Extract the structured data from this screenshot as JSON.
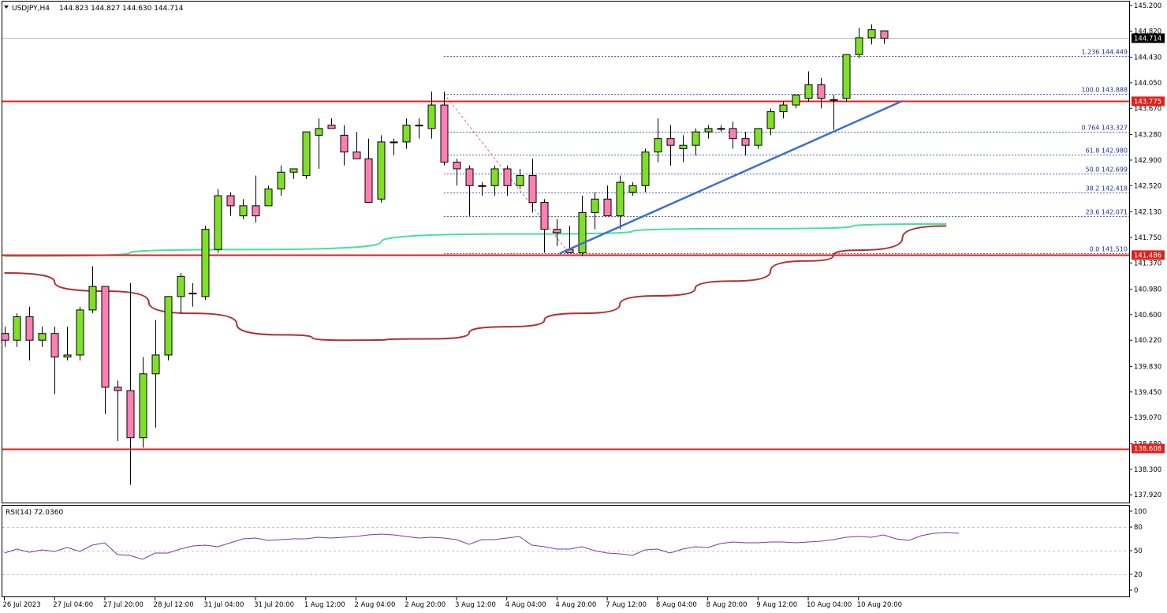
{
  "chart_data": {
    "type": "candlestick",
    "symbol_label": "USDJPY,H4",
    "ohlc_label": "144.823 144.827 144.630 144.714",
    "price_axis_ticks": [
      "145.200",
      "144.820",
      "144.430",
      "144.050",
      "143.670",
      "143.280",
      "142.900",
      "142.520",
      "142.130",
      "141.750",
      "141.370",
      "140.980",
      "140.600",
      "140.220",
      "139.830",
      "139.450",
      "139.070",
      "138.680",
      "138.300",
      "137.920"
    ],
    "price_axis_tick_values": [
      145.2,
      144.82,
      144.43,
      144.05,
      143.67,
      143.28,
      142.9,
      142.52,
      142.13,
      141.75,
      141.37,
      140.98,
      140.6,
      140.22,
      139.83,
      139.45,
      139.07,
      138.68,
      138.3,
      137.92
    ],
    "time_axis_labels": [
      "26 Jul 2023",
      "27 Jul 04:00",
      "27 Jul 20:00",
      "28 Jul 12:00",
      "31 Jul 04:00",
      "31 Jul 20:00",
      "1 Aug 12:00",
      "2 Aug 04:00",
      "2 Aug 20:00",
      "3 Aug 12:00",
      "4 Aug 04:00",
      "4 Aug 20:00",
      "7 Aug 12:00",
      "8 Aug 04:00",
      "8 Aug 20:00",
      "9 Aug 12:00",
      "10 Aug 04:00",
      "10 Aug 20:00"
    ],
    "time_axis_label_bars": [
      0,
      4,
      8,
      12,
      16,
      20,
      24,
      28,
      32,
      36,
      40,
      44,
      48,
      52,
      56,
      60,
      64,
      68
    ],
    "bull_color": "#7fe02a",
    "bear_color": "#ff7fb2",
    "candles": [
      [
        140.32,
        140.42,
        140.12,
        140.22
      ],
      [
        140.22,
        140.62,
        140.12,
        140.57
      ],
      [
        140.57,
        140.72,
        139.92,
        140.22
      ],
      [
        140.22,
        140.42,
        140.12,
        140.32
      ],
      [
        140.32,
        140.42,
        139.42,
        139.97
      ],
      [
        139.97,
        140.42,
        139.92,
        140.0
      ],
      [
        140.0,
        140.72,
        139.92,
        140.67
      ],
      [
        140.67,
        141.32,
        140.62,
        141.02
      ],
      [
        141.02,
        141.02,
        139.12,
        139.52
      ],
      [
        139.52,
        139.62,
        138.72,
        139.47
      ],
      [
        139.47,
        141.07,
        138.07,
        138.77
      ],
      [
        138.77,
        139.97,
        138.62,
        139.72
      ],
      [
        139.72,
        140.52,
        138.92,
        140.0
      ],
      [
        140.0,
        140.87,
        139.92,
        140.87
      ],
      [
        140.87,
        141.22,
        140.62,
        141.17
      ],
      [
        140.92,
        141.07,
        140.72,
        140.92
      ],
      [
        140.87,
        141.92,
        140.82,
        141.87
      ],
      [
        141.57,
        142.47,
        141.52,
        142.37
      ],
      [
        142.37,
        142.42,
        142.07,
        142.22
      ],
      [
        142.07,
        142.32,
        142.02,
        142.22
      ],
      [
        142.22,
        142.67,
        141.97,
        142.07
      ],
      [
        142.22,
        142.52,
        142.22,
        142.47
      ],
      [
        142.47,
        142.82,
        142.37,
        142.72
      ],
      [
        142.72,
        142.77,
        142.62,
        142.77
      ],
      [
        142.67,
        143.32,
        142.62,
        143.32
      ],
      [
        143.27,
        143.52,
        142.77,
        143.37
      ],
      [
        143.42,
        143.52,
        143.37,
        143.37
      ],
      [
        143.27,
        143.42,
        142.82,
        143.02
      ],
      [
        143.02,
        143.32,
        142.92,
        142.92
      ],
      [
        142.92,
        143.22,
        142.27,
        142.27
      ],
      [
        142.32,
        143.27,
        142.27,
        143.17
      ],
      [
        143.17,
        143.22,
        142.97,
        143.17
      ],
      [
        143.17,
        143.52,
        143.07,
        143.42
      ],
      [
        143.42,
        143.52,
        143.22,
        143.42
      ],
      [
        143.37,
        143.92,
        143.22,
        143.72
      ],
      [
        143.72,
        143.92,
        142.82,
        142.87
      ],
      [
        142.87,
        142.92,
        142.52,
        142.77
      ],
      [
        142.77,
        142.82,
        142.07,
        142.52
      ],
      [
        142.52,
        142.57,
        142.37,
        142.52
      ],
      [
        142.52,
        142.82,
        142.37,
        142.77
      ],
      [
        142.77,
        142.82,
        142.37,
        142.52
      ],
      [
        142.52,
        142.77,
        142.47,
        142.67
      ],
      [
        142.67,
        142.92,
        142.12,
        142.27
      ],
      [
        142.27,
        142.32,
        141.52,
        141.87
      ],
      [
        141.87,
        142.02,
        141.62,
        141.82
      ],
      [
        141.57,
        141.92,
        141.52,
        141.52
      ],
      [
        141.52,
        142.37,
        141.47,
        142.12
      ],
      [
        142.12,
        142.42,
        141.87,
        142.32
      ],
      [
        142.32,
        142.52,
        142.07,
        142.07
      ],
      [
        142.07,
        142.67,
        141.87,
        142.57
      ],
      [
        142.42,
        142.57,
        142.37,
        142.52
      ],
      [
        142.52,
        143.07,
        142.42,
        143.02
      ],
      [
        143.02,
        143.52,
        142.87,
        143.22
      ],
      [
        143.22,
        143.42,
        142.82,
        143.12
      ],
      [
        143.07,
        143.27,
        142.87,
        143.12
      ],
      [
        143.12,
        143.37,
        142.97,
        143.32
      ],
      [
        143.32,
        143.42,
        143.22,
        143.37
      ],
      [
        143.37,
        143.42,
        143.32,
        143.37
      ],
      [
        143.37,
        143.47,
        143.07,
        143.22
      ],
      [
        143.22,
        143.32,
        142.97,
        143.12
      ],
      [
        143.12,
        143.37,
        143.07,
        143.37
      ],
      [
        143.37,
        143.67,
        143.27,
        143.62
      ],
      [
        143.62,
        143.77,
        143.52,
        143.72
      ],
      [
        143.72,
        143.82,
        143.67,
        143.87
      ],
      [
        143.82,
        144.22,
        143.77,
        144.02
      ],
      [
        144.02,
        144.12,
        143.67,
        143.82
      ],
      [
        143.8,
        143.87,
        143.35,
        143.8
      ],
      [
        143.82,
        144.42,
        143.77,
        144.47
      ],
      [
        144.47,
        144.87,
        144.42,
        144.72
      ],
      [
        144.72,
        144.92,
        144.62,
        144.84
      ],
      [
        144.823,
        144.827,
        144.63,
        144.714
      ]
    ],
    "horizontal_levels": [
      {
        "price": 143.775,
        "label": "143.775",
        "color": "#e0201c"
      },
      {
        "price": 141.486,
        "label": "141.486",
        "color": "#e0201c"
      },
      {
        "price": 138.608,
        "label": "138.608",
        "color": "#e0201c"
      }
    ],
    "current_price": {
      "price": 144.714,
      "label": "144.714"
    },
    "fibonacci": {
      "color": "#1f2f9e",
      "levels": [
        {
          "label": "1.236 144.449",
          "price": 144.449
        },
        {
          "label": "100.0 143.888",
          "price": 143.888
        },
        {
          "label": "0.764 143.327",
          "price": 143.327
        },
        {
          "label": "61.8 142.980",
          "price": 142.98
        },
        {
          "label": "50.0 142.699",
          "price": 142.699
        },
        {
          "label": "38.2 142.418",
          "price": 142.418
        },
        {
          "label": "23.6 142.071",
          "price": 142.071
        },
        {
          "label": "0.0 141.510",
          "price": 141.51
        }
      ]
    },
    "trendline": {
      "color": "#3b6fd4",
      "from": {
        "bar": 44.2,
        "price": 141.51
      },
      "to": {
        "bar": 71.5,
        "price": 143.78
      }
    },
    "moving_average_green": {
      "color": "#44e2a0",
      "points": [
        [
          0,
          141.47
        ],
        [
          20,
          141.57
        ],
        [
          40,
          141.8
        ],
        [
          60,
          141.88
        ],
        [
          75,
          141.95
        ]
      ]
    },
    "moving_average_red": {
      "color": "#b03030",
      "points": [
        [
          0,
          141.22
        ],
        [
          8,
          140.95
        ],
        [
          15,
          140.62
        ],
        [
          22,
          140.3
        ],
        [
          27,
          140.22
        ],
        [
          34,
          140.24
        ],
        [
          40,
          140.42
        ],
        [
          46,
          140.62
        ],
        [
          52,
          140.88
        ],
        [
          58,
          141.1
        ],
        [
          64,
          141.4
        ],
        [
          68,
          141.56
        ],
        [
          75,
          141.92
        ]
      ]
    },
    "rsi": {
      "label": "RSI(14) 72.0360",
      "color": "#7b3a9e",
      "ticks": [
        "100",
        "80",
        "50",
        "20",
        "0"
      ],
      "tick_values": [
        100,
        80,
        50,
        20,
        0
      ],
      "levels": [
        80,
        50,
        20
      ],
      "values": [
        47,
        52,
        48,
        51,
        49,
        54,
        49,
        57,
        60,
        45,
        44,
        39,
        47,
        47,
        52,
        56,
        57,
        55,
        60,
        65,
        66,
        63,
        64,
        65,
        65,
        67,
        66,
        67,
        68,
        70,
        71,
        70,
        68,
        66,
        67,
        66,
        64,
        58,
        64,
        64,
        66,
        68,
        57,
        55,
        52,
        52,
        55,
        50,
        47,
        46,
        44,
        51,
        52,
        47,
        52,
        55,
        54,
        59,
        61,
        60,
        60,
        61,
        61,
        60,
        61,
        62,
        64,
        67,
        68,
        67,
        70,
        65,
        63,
        69,
        72,
        73,
        72
      ]
    }
  }
}
